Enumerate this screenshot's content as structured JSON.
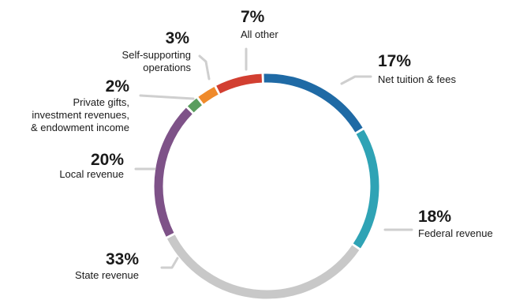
{
  "chart_data": {
    "type": "pie",
    "style": "donut",
    "legend": "none",
    "slices": [
      {
        "label": "Net tuition & fees",
        "value": 17,
        "pct_label": "17%",
        "color": "#1f6aa5"
      },
      {
        "label": "Federal revenue",
        "value": 18,
        "pct_label": "18%",
        "color": "#2fa3b5"
      },
      {
        "label": "State revenue",
        "value": 33,
        "pct_label": "33%",
        "color": "#c8c8c8"
      },
      {
        "label": "Local revenue",
        "value": 20,
        "pct_label": "20%",
        "color": "#7e5288"
      },
      {
        "label": "Private gifts, investment revenues, & endowment income",
        "label_lines": [
          "Private gifts,",
          "investment revenues,",
          "& endowment income"
        ],
        "value": 2,
        "pct_label": "2%",
        "color": "#5a9d5e"
      },
      {
        "label": "Self-supporting operations",
        "label_lines": [
          "Self-supporting",
          "operations"
        ],
        "value": 3,
        "pct_label": "3%",
        "color": "#ef8a2b"
      },
      {
        "label": "All other",
        "value": 7,
        "pct_label": "7%",
        "color": "#d23f31"
      }
    ]
  }
}
